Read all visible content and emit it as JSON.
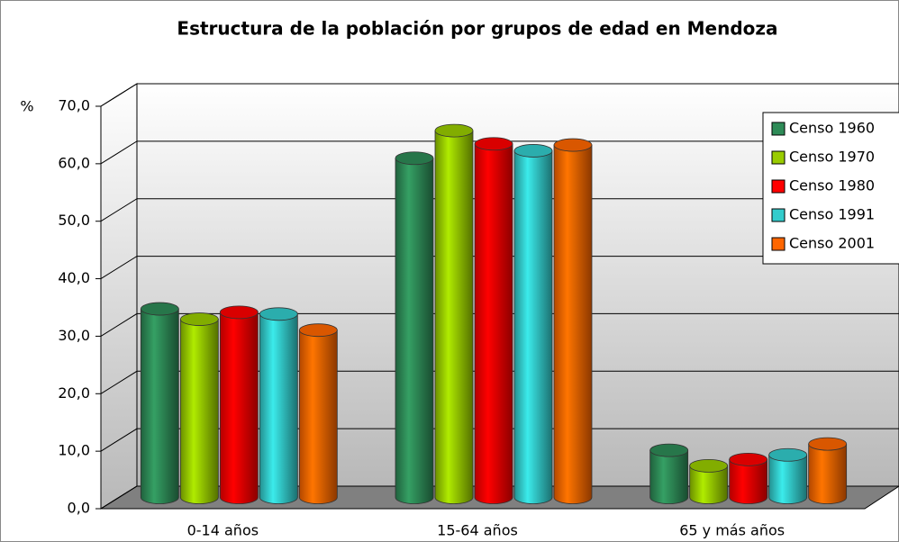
{
  "chart_data": {
    "type": "bar3d",
    "title": "Estructura de la población por grupos de edad en Mendoza",
    "y_label": "%",
    "categories": [
      "0-14 años",
      "15-64 años",
      "65 y más años"
    ],
    "series": [
      {
        "name": "Censo 1960",
        "color": "#2e8b57",
        "values": [
          32.8,
          59.0,
          8.2
        ]
      },
      {
        "name": "Censo 1970",
        "color": "#99cc00",
        "values": [
          31.0,
          63.8,
          5.5
        ]
      },
      {
        "name": "Censo 1980",
        "color": "#ff0000",
        "values": [
          32.2,
          61.5,
          6.6
        ]
      },
      {
        "name": "Censo 1991",
        "color": "#33cccc",
        "values": [
          31.9,
          60.3,
          7.4
        ]
      },
      {
        "name": "Censo 2001",
        "color": "#ff6600",
        "values": [
          29.1,
          61.3,
          9.3
        ]
      }
    ],
    "ylim": [
      0,
      70
    ],
    "yticks": [
      {
        "value": 0,
        "label": "0,0"
      },
      {
        "value": 10,
        "label": "10,0"
      },
      {
        "value": 20,
        "label": "20,0"
      },
      {
        "value": 30,
        "label": "30,0"
      },
      {
        "value": 40,
        "label": "40,0"
      },
      {
        "value": 50,
        "label": "50,0"
      },
      {
        "value": 60,
        "label": "60,0"
      },
      {
        "value": 70,
        "label": "70,0"
      }
    ],
    "grid": true,
    "legend": "right"
  }
}
